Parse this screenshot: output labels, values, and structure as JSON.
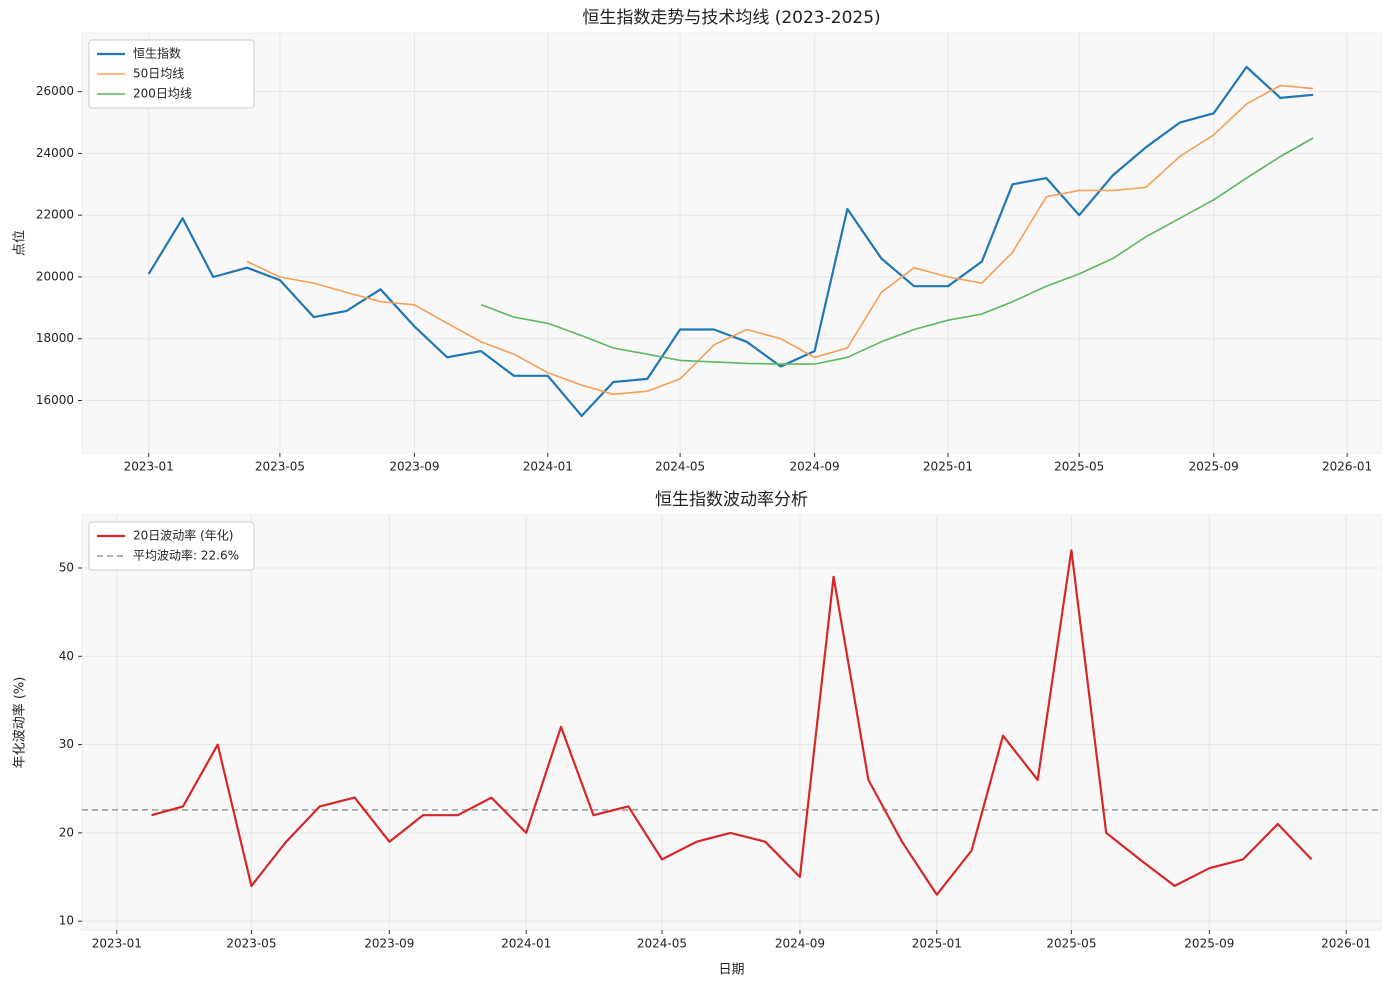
{
  "chart_data": [
    {
      "type": "line",
      "title": "恒生指数走势与技术均线 (2023-2025)",
      "ylabel": "点位",
      "x": [
        "2023-01",
        "2023-02",
        "2023-03",
        "2023-04",
        "2023-05",
        "2023-06",
        "2023-07",
        "2023-08",
        "2023-09",
        "2023-10",
        "2023-11",
        "2023-12",
        "2024-01",
        "2024-02",
        "2024-03",
        "2024-04",
        "2024-05",
        "2024-06",
        "2024-07",
        "2024-08",
        "2024-09",
        "2024-10",
        "2024-11",
        "2024-12",
        "2025-01",
        "2025-02",
        "2025-03",
        "2025-04",
        "2025-05",
        "2025-06",
        "2025-07",
        "2025-08",
        "2025-09",
        "2025-10",
        "2025-11",
        "2025-12"
      ],
      "series": [
        {
          "name": "恒生指数",
          "color": "#1f77b4",
          "width": 2.2,
          "values": [
            20100,
            21900,
            20000,
            20300,
            19900,
            18700,
            18900,
            19600,
            18400,
            17400,
            17600,
            16800,
            16800,
            15500,
            16600,
            16700,
            18300,
            18300,
            17900,
            17100,
            17600,
            22200,
            20600,
            19700,
            19700,
            20500,
            23000,
            23200,
            22000,
            23300,
            24200,
            25000,
            25300,
            26800,
            25800,
            25900
          ]
        },
        {
          "name": "50日均线",
          "color": "#f5a055",
          "width": 1.6,
          "values": [
            null,
            null,
            null,
            20500,
            20000,
            19800,
            19500,
            19200,
            19100,
            18500,
            17900,
            17500,
            16900,
            16500,
            16200,
            16300,
            16700,
            17800,
            18300,
            18000,
            17400,
            17700,
            19500,
            20300,
            20000,
            19800,
            20800,
            22600,
            22800,
            22800,
            22900,
            23900,
            24600,
            25600,
            26200,
            26100
          ]
        },
        {
          "name": "200日均线",
          "color": "#5cb85c",
          "width": 1.6,
          "values": [
            null,
            null,
            null,
            null,
            null,
            null,
            null,
            null,
            null,
            null,
            19100,
            18700,
            18500,
            18100,
            17700,
            17500,
            17300,
            17250,
            17200,
            17180,
            17180,
            17400,
            17900,
            18300,
            18600,
            18800,
            19200,
            19700,
            20100,
            20600,
            21300,
            21900,
            22500,
            23200,
            23900,
            24500
          ]
        }
      ],
      "xlim": [
        "2022-11",
        "2026-02"
      ],
      "xticks": [
        "2023-01",
        "2023-05",
        "2023-09",
        "2024-01",
        "2024-05",
        "2024-09",
        "2025-01",
        "2025-05",
        "2025-09",
        "2026-01"
      ],
      "ylim": [
        14300,
        27900
      ],
      "yticks": [
        16000,
        18000,
        20000,
        22000,
        24000,
        26000
      ],
      "grid": true,
      "legend": "upper-left"
    },
    {
      "type": "line",
      "title": "恒生指数波动率分析",
      "xlabel": "日期",
      "ylabel": "年化波动率 (%)",
      "x": [
        "2023-02",
        "2023-03",
        "2023-04",
        "2023-05",
        "2023-06",
        "2023-07",
        "2023-08",
        "2023-09",
        "2023-10",
        "2023-11",
        "2023-12",
        "2024-01",
        "2024-02",
        "2024-03",
        "2024-04",
        "2024-05",
        "2024-06",
        "2024-07",
        "2024-08",
        "2024-09",
        "2024-10",
        "2024-11",
        "2024-12",
        "2025-01",
        "2025-02",
        "2025-03",
        "2025-04",
        "2025-05",
        "2025-06",
        "2025-07",
        "2025-08",
        "2025-09",
        "2025-10",
        "2025-11",
        "2025-12"
      ],
      "series": [
        {
          "name": "20日波动率 (年化)",
          "color": "#d62728",
          "width": 2.2,
          "values": [
            22,
            23,
            30,
            14,
            19,
            23,
            24,
            19,
            22,
            22,
            24,
            20,
            32,
            22,
            23,
            17,
            19,
            20,
            19,
            15,
            49,
            26,
            19,
            13,
            18,
            31,
            26,
            52,
            20,
            17,
            14,
            16,
            17,
            21,
            17
          ]
        }
      ],
      "hlines": [
        {
          "name": "平均波动率: 22.6%",
          "value": 22.6,
          "color": "#999999",
          "linestyle": "dashed"
        }
      ],
      "xlim": [
        "2022-12",
        "2026-02"
      ],
      "xticks": [
        "2023-01",
        "2023-05",
        "2023-09",
        "2024-01",
        "2024-05",
        "2024-09",
        "2025-01",
        "2025-05",
        "2025-09",
        "2026-01"
      ],
      "ylim": [
        9,
        56
      ],
      "yticks": [
        10,
        20,
        30,
        40,
        50
      ],
      "grid": true,
      "legend": "upper-left"
    }
  ]
}
